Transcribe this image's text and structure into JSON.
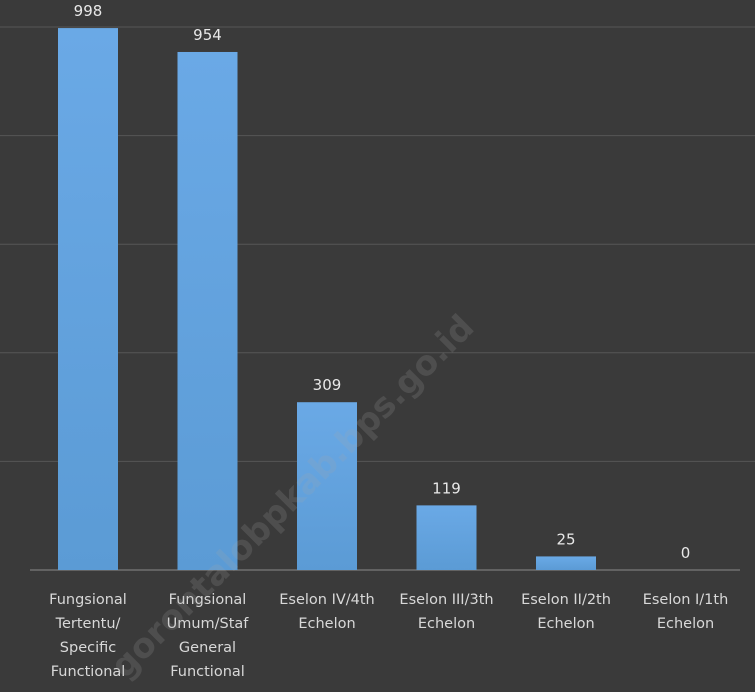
{
  "chart_data": {
    "type": "bar",
    "categories": [
      [
        "Fungsional",
        "Tertentu/",
        "Specific",
        "Functional"
      ],
      [
        "Fungsional",
        "Umum/Staf",
        "General",
        "Functional"
      ],
      [
        "Eselon IV/4th",
        "Echelon"
      ],
      [
        "Eselon III/3th",
        "Echelon"
      ],
      [
        "Eselon II/2th",
        "Echelon"
      ],
      [
        "Eselon I/1th",
        "Echelon"
      ]
    ],
    "values": [
      998,
      954,
      309,
      119,
      25,
      0
    ],
    "ylim": [
      0,
      1000
    ],
    "grid": true,
    "legend": "none",
    "colors": {
      "background": "#3a3a3a",
      "bar": "#5b9bd5",
      "bar_light": "#6aa9e6",
      "gridline": "#565656",
      "text": "#e0e0e0"
    }
  },
  "watermark": "gorontalobpkab.bps.go.id"
}
